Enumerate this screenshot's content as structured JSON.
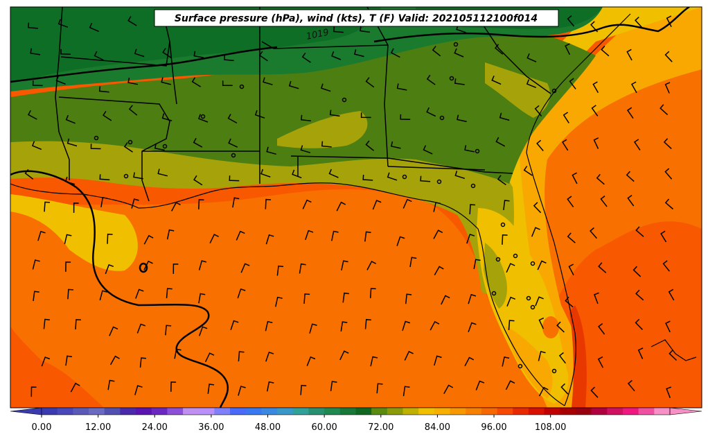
{
  "map": {
    "title": "Surface pressure (hPa), wind (kts), T (F) Valid: 202105112100f014",
    "isobar_label": "1019"
  },
  "colorbar": {
    "ticks": [
      "0.00",
      "12.00",
      "24.00",
      "36.00",
      "48.00",
      "60.00",
      "72.00",
      "84.00",
      "96.00",
      "108.00"
    ],
    "colors": [
      "#3b3bb0",
      "#4848b8",
      "#5a5ab8",
      "#6a6ac0",
      "#5050b0",
      "#4a2aa8",
      "#5a14b0",
      "#6a28c0",
      "#8c50d8",
      "#c090f0",
      "#b890f8",
      "#8080f8",
      "#4a6af8",
      "#3a78f0",
      "#3a88e0",
      "#3a98c8",
      "#30a098",
      "#289070",
      "#208850",
      "#187838",
      "#106820",
      "#5a8a10",
      "#8a9a08",
      "#c0b000",
      "#f0c000",
      "#f8b000",
      "#f89800",
      "#f88000",
      "#f86800",
      "#f84800",
      "#e82800",
      "#d81000",
      "#c00000",
      "#a80000",
      "#980010",
      "#b00040",
      "#d01060",
      "#f01880",
      "#f050a0",
      "#f890c8"
    ]
  },
  "temperature_palette": {
    "dark_green": "#0e6e26",
    "green": "#1a7a2e",
    "olive_green": "#4c7e12",
    "olive": "#a6a20a",
    "yellow": "#f0c000",
    "light_orange": "#f8a800",
    "orange": "#f87000",
    "deep_orange": "#f85800",
    "red_orange": "#e83800"
  }
}
